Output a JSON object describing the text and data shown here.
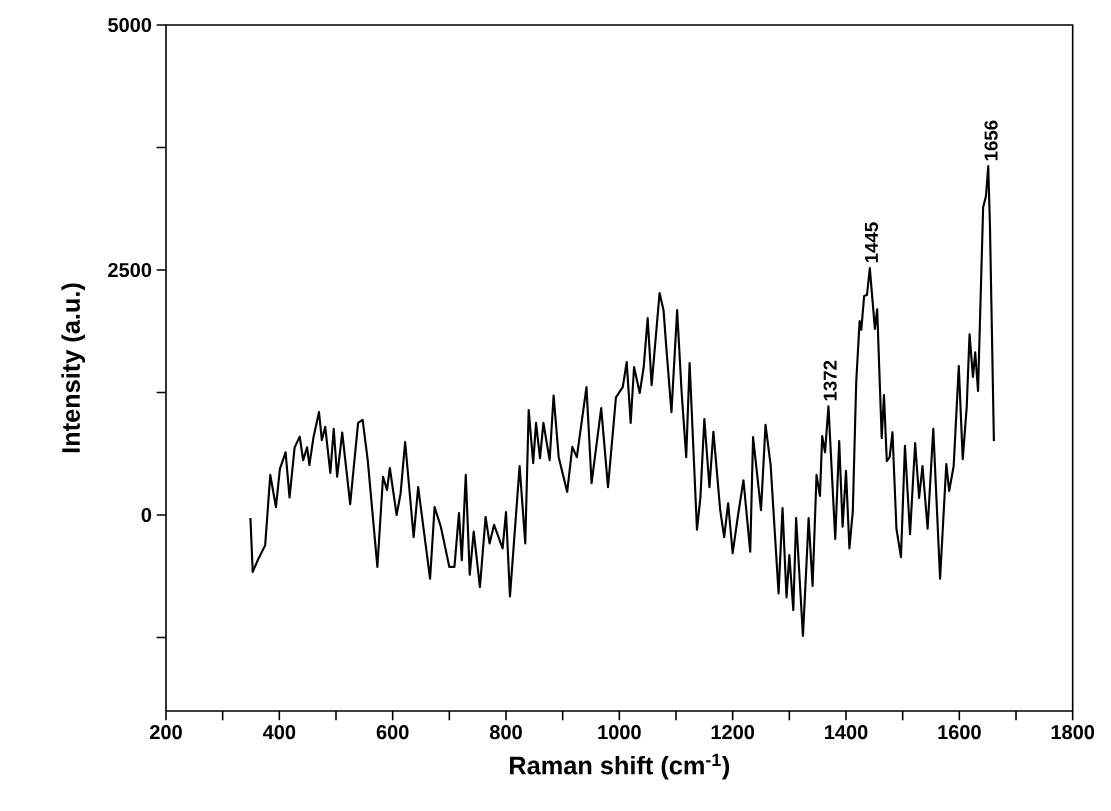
{
  "chart_data": {
    "type": "line",
    "xlabel": "Raman shift (cm$^{-1}$)",
    "ylabel": "Intensity (a.u.)",
    "xlim": [
      200,
      1800
    ],
    "ylim": [
      -2000,
      5000
    ],
    "xticks": [
      200,
      {
        "value": 300,
        "label": null
      },
      400,
      {
        "value": 500,
        "label": null
      },
      600,
      {
        "value": 700,
        "label": null
      },
      800,
      {
        "value": 900,
        "label": null
      },
      1000,
      {
        "value": 1100,
        "label": null
      },
      1200,
      {
        "value": 1300,
        "label": null
      },
      1400,
      {
        "value": 1500,
        "label": null
      },
      1600,
      {
        "value": 1700,
        "label": null
      },
      1800
    ],
    "yticks": [
      {
        "value": -1250,
        "label": null
      },
      0,
      {
        "value": 1250,
        "label": null
      },
      2500,
      {
        "value": 3750,
        "label": null
      },
      5000
    ],
    "series": [
      {
        "color": "#000000",
        "x": [
          349,
          353,
          362,
          375,
          384,
          394,
          401,
          411,
          418,
          427,
          436,
          442,
          449,
          453,
          460,
          470,
          475,
          481,
          490,
          496,
          502,
          511,
          525,
          539,
          547,
          556,
          573,
          583,
          590,
          595,
          607,
          614,
          622,
          637,
          645,
          666,
          674,
          685,
          700,
          709,
          717,
          722,
          729,
          736,
          743,
          754,
          764,
          771,
          779,
          794,
          800,
          807,
          824,
          834,
          840,
          848,
          853,
          860,
          866,
          877,
          884,
          893,
          908,
          917,
          925,
          942,
          951,
          968,
          980,
          994,
          1006,
          1013,
          1020,
          1026,
          1036,
          1043,
          1050,
          1057,
          1071,
          1078,
          1083,
          1092,
          1102,
          1110,
          1118,
          1124,
          1137,
          1143,
          1150,
          1159,
          1166,
          1178,
          1185,
          1192,
          1200,
          1209,
          1219,
          1231,
          1236,
          1250,
          1258,
          1267,
          1281,
          1288,
          1295,
          1300,
          1307,
          1312,
          1324,
          1331,
          1334,
          1341,
          1348,
          1354,
          1358,
          1363,
          1369,
          1381,
          1388,
          1394,
          1400,
          1406,
          1412,
          1418,
          1424,
          1427,
          1432,
          1437,
          1442,
          1451,
          1455,
          1463,
          1467,
          1472,
          1477,
          1482,
          1489,
          1497,
          1504,
          1513,
          1522,
          1529,
          1535,
          1544,
          1554,
          1566,
          1577,
          1582,
          1590,
          1599,
          1606,
          1613,
          1618,
          1624,
          1628,
          1633,
          1642,
          1647,
          1651,
          1654,
          1661
        ],
        "values": [
          -30,
          -580,
          -460,
          -310,
          410,
          80,
          470,
          640,
          180,
          690,
          800,
          560,
          690,
          510,
          785,
          1050,
          765,
          900,
          430,
          880,
          390,
          840,
          110,
          940,
          970,
          560,
          -530,
          390,
          255,
          480,
          0,
          220,
          745,
          -225,
          285,
          -650,
          80,
          -120,
          -530,
          -530,
          20,
          -460,
          410,
          -610,
          -170,
          -735,
          -20,
          -290,
          -100,
          -340,
          30,
          -830,
          500,
          -290,
          1070,
          530,
          940,
          580,
          940,
          560,
          1220,
          590,
          235,
          695,
          590,
          1305,
          325,
          1090,
          285,
          1200,
          1305,
          1560,
          940,
          1510,
          1245,
          1510,
          2010,
          1325,
          2265,
          2090,
          1700,
          1050,
          2090,
          1245,
          590,
          1550,
          -150,
          175,
          980,
          285,
          850,
          50,
          -225,
          120,
          -390,
          -20,
          355,
          -375,
          795,
          50,
          920,
          510,
          -800,
          70,
          -840,
          -410,
          -970,
          -30,
          -1235,
          -410,
          -30,
          -725,
          410,
          195,
          805,
          640,
          1110,
          -245,
          755,
          -120,
          450,
          -340,
          40,
          1355,
          1980,
          1890,
          2235,
          2245,
          2520,
          1900,
          2100,
          785,
          1225,
          550,
          590,
          845,
          -140,
          -430,
          705,
          -195,
          735,
          175,
          500,
          -140,
          880,
          -650,
          520,
          245,
          500,
          1520,
          570,
          1100,
          1845,
          1410,
          1660,
          1265,
          3140,
          3255,
          3560,
          2960,
          755
        ]
      }
    ],
    "annotations": [
      {
        "text": "1372",
        "x": 1372,
        "y": 1110
      },
      {
        "text": "1445",
        "x": 1445,
        "y": 2520
      },
      {
        "text": "1656",
        "x": 1656,
        "y": 3560
      }
    ]
  }
}
